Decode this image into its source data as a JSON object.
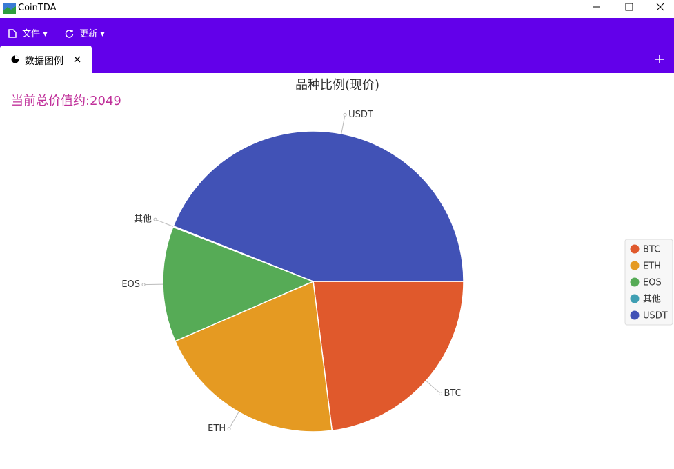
{
  "window_title": "CoinTDA",
  "menu": [
    "文件",
    "更新"
  ],
  "tab": "数据图例",
  "total_value": "当前总价值约:2049",
  "chart_data": {
    "type": "pie",
    "title": "品种比例(现价)",
    "categories": [
      "BTC",
      "ETH",
      "EOS",
      "其他",
      "USDT"
    ],
    "values": [
      23,
      20.5,
      12.4,
      0.1,
      44
    ],
    "colors": [
      "#e0592c",
      "#e59a22",
      "#56ab56",
      "#3f9fb3",
      "#4152b6"
    ],
    "legend": "right"
  }
}
